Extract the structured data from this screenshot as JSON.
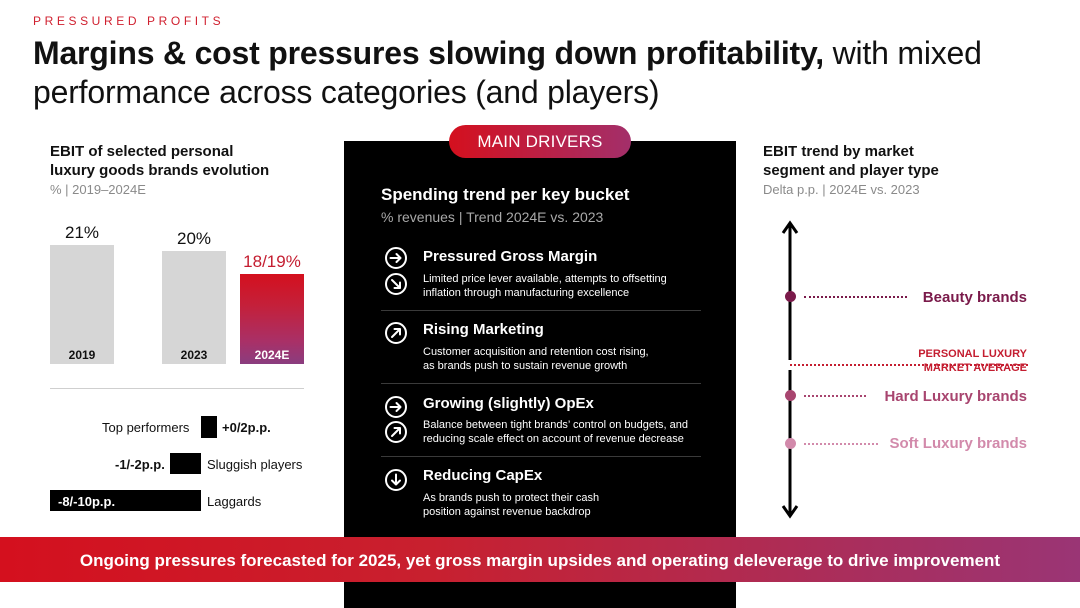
{
  "header": {
    "kicker": "PRESSURED PROFITS",
    "title_bold": "Margins & cost pressures slowing down profitability,",
    "title_rest": " with mixed performance across categories (and players)"
  },
  "left": {
    "title_line1": "EBIT of selected personal",
    "title_line2": "luxury goods brands evolution",
    "subtitle": "% | 2019–2024E",
    "performers": [
      {
        "label": "Top performers",
        "value": "+0/2p.p."
      },
      {
        "label": "Sluggish players",
        "value": "-1/-2p.p."
      },
      {
        "label": "Laggards",
        "value": "-8/-10p.p."
      }
    ]
  },
  "chart_data": {
    "type": "bar",
    "title": "EBIT of selected personal luxury goods brands evolution",
    "categories": [
      "2019",
      "2023",
      "2024E"
    ],
    "values": [
      21,
      20,
      18.5
    ],
    "value_labels": [
      "21%",
      "20%",
      "18/19%"
    ],
    "highlight_color": "#c41d30",
    "bar_color": "#d6d6d6"
  },
  "center": {
    "pill": "MAIN DRIVERS",
    "title": "Spending trend per key bucket",
    "subtitle": "% revenues | Trend 2024E vs. 2023",
    "drivers": [
      {
        "heading": "Pressured Gross Margin",
        "line1": "Limited price lever available, attempts to offsetting",
        "line2": "inflation through manufacturing excellence",
        "icons": [
          "arrow-right-icon",
          "arrow-down-right-icon"
        ]
      },
      {
        "heading": "Rising Marketing",
        "line1": "Customer acquisition and retention cost rising,",
        "line2": "as brands push to sustain revenue growth",
        "icons": [
          "arrow-up-right-icon"
        ]
      },
      {
        "heading": "Growing (slightly) OpEx",
        "line1": "Balance between tight brands’ control on budgets, and",
        "line2": "reducing scale effect on account of revenue decrease",
        "icons": [
          "arrow-right-icon",
          "arrow-up-right-icon"
        ]
      },
      {
        "heading": "Reducing CapEx",
        "line1": "As brands push to protect their cash",
        "line2": "position against revenue backdrop",
        "icons": [
          "arrow-down-icon"
        ]
      }
    ]
  },
  "right": {
    "title_line1": "EBIT trend by market",
    "title_line2": "segment and player type",
    "subtitle": "Delta p.p. | 2024E vs. 2023",
    "segments": [
      {
        "label": "Beauty brands",
        "color": "#7a1a4a"
      },
      {
        "label": "Hard Luxury brands",
        "color": "#a8456f"
      },
      {
        "label": "Soft Luxury brands",
        "color": "#d28aab"
      }
    ],
    "avg_line1": "PERSONAL LUXURY",
    "avg_line2": "MARKET AVERAGE",
    "avg_color": "#c41d30"
  },
  "banner": {
    "text": "Ongoing pressures forecasted for 2025, yet gross margin upsides and operating deleverage to drive improvement"
  }
}
